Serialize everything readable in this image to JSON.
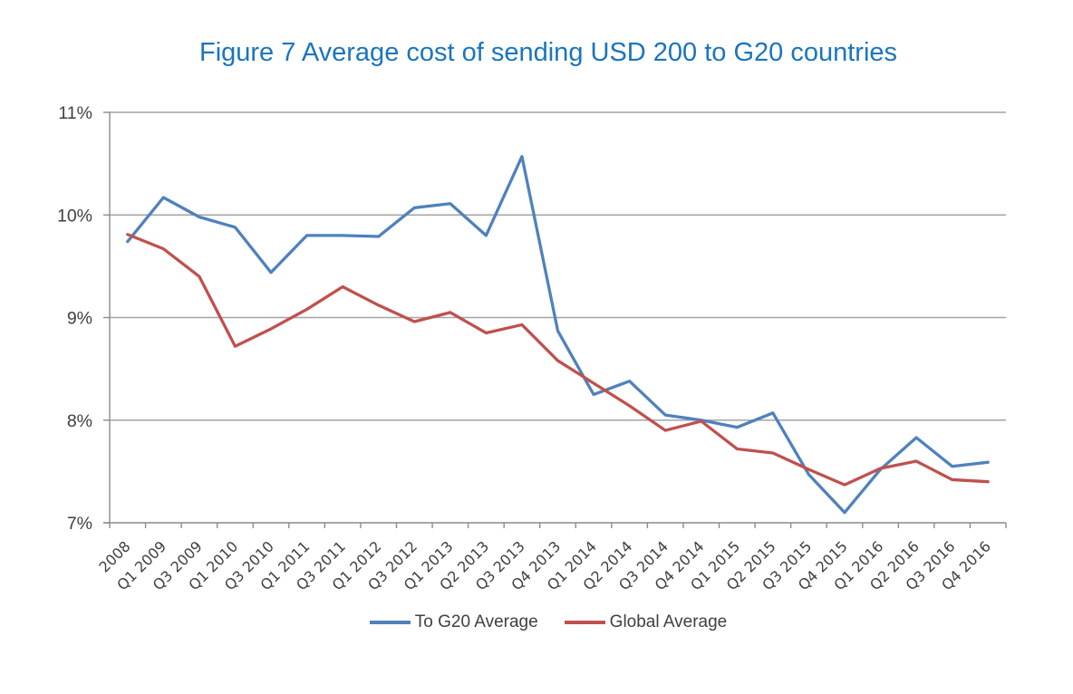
{
  "chart_data": {
    "type": "line",
    "title": "Figure 7 Average cost of sending USD 200 to G20 countries",
    "title_color": "#1b75bc",
    "categories": [
      "2008",
      "Q1 2009",
      "Q3 2009",
      "Q1 2010",
      "Q3 2010",
      "Q1 2011",
      "Q3 2011",
      "Q1 2012",
      "Q3 2012",
      "Q1 2013",
      "Q2 2013",
      "Q3 2013",
      "Q4 2013",
      "Q1 2014",
      "Q2 2014",
      "Q3 2014",
      "Q4 2014",
      "Q1 2015",
      "Q2 2015",
      "Q3 2015",
      "Q4 2015",
      "Q1 2016",
      "Q2 2016",
      "Q3 2016",
      "Q4 2016"
    ],
    "series": [
      {
        "name": "To G20 Average",
        "color": "#4f81bd",
        "values": [
          9.74,
          10.17,
          9.98,
          9.88,
          9.44,
          9.8,
          9.8,
          9.79,
          10.07,
          10.11,
          9.8,
          10.57,
          8.87,
          8.25,
          8.38,
          8.05,
          8.0,
          7.93,
          8.07,
          7.47,
          7.1,
          7.52,
          7.83,
          7.55,
          7.59
        ]
      },
      {
        "name": "Global Average",
        "color": "#c0504d",
        "values": [
          9.81,
          9.67,
          9.4,
          8.72,
          8.89,
          9.08,
          9.3,
          9.12,
          8.96,
          9.05,
          8.85,
          8.93,
          8.58,
          8.36,
          8.14,
          7.9,
          7.99,
          7.72,
          7.68,
          7.52,
          7.37,
          7.53,
          7.6,
          7.42,
          7.4
        ]
      }
    ],
    "xlabel": "",
    "ylabel": "",
    "ylim": [
      7,
      11
    ],
    "y_tick_step": 1,
    "y_tick_suffix": "%",
    "y_tick_labels": [
      "7%",
      "8%",
      "9%",
      "10%",
      "11%"
    ],
    "grid": "horizontal",
    "legend_position": "bottom",
    "axis_text_color": "#3f3f3f",
    "grid_color": "#a3a3a3",
    "axis_color": "#8c8c8c"
  }
}
